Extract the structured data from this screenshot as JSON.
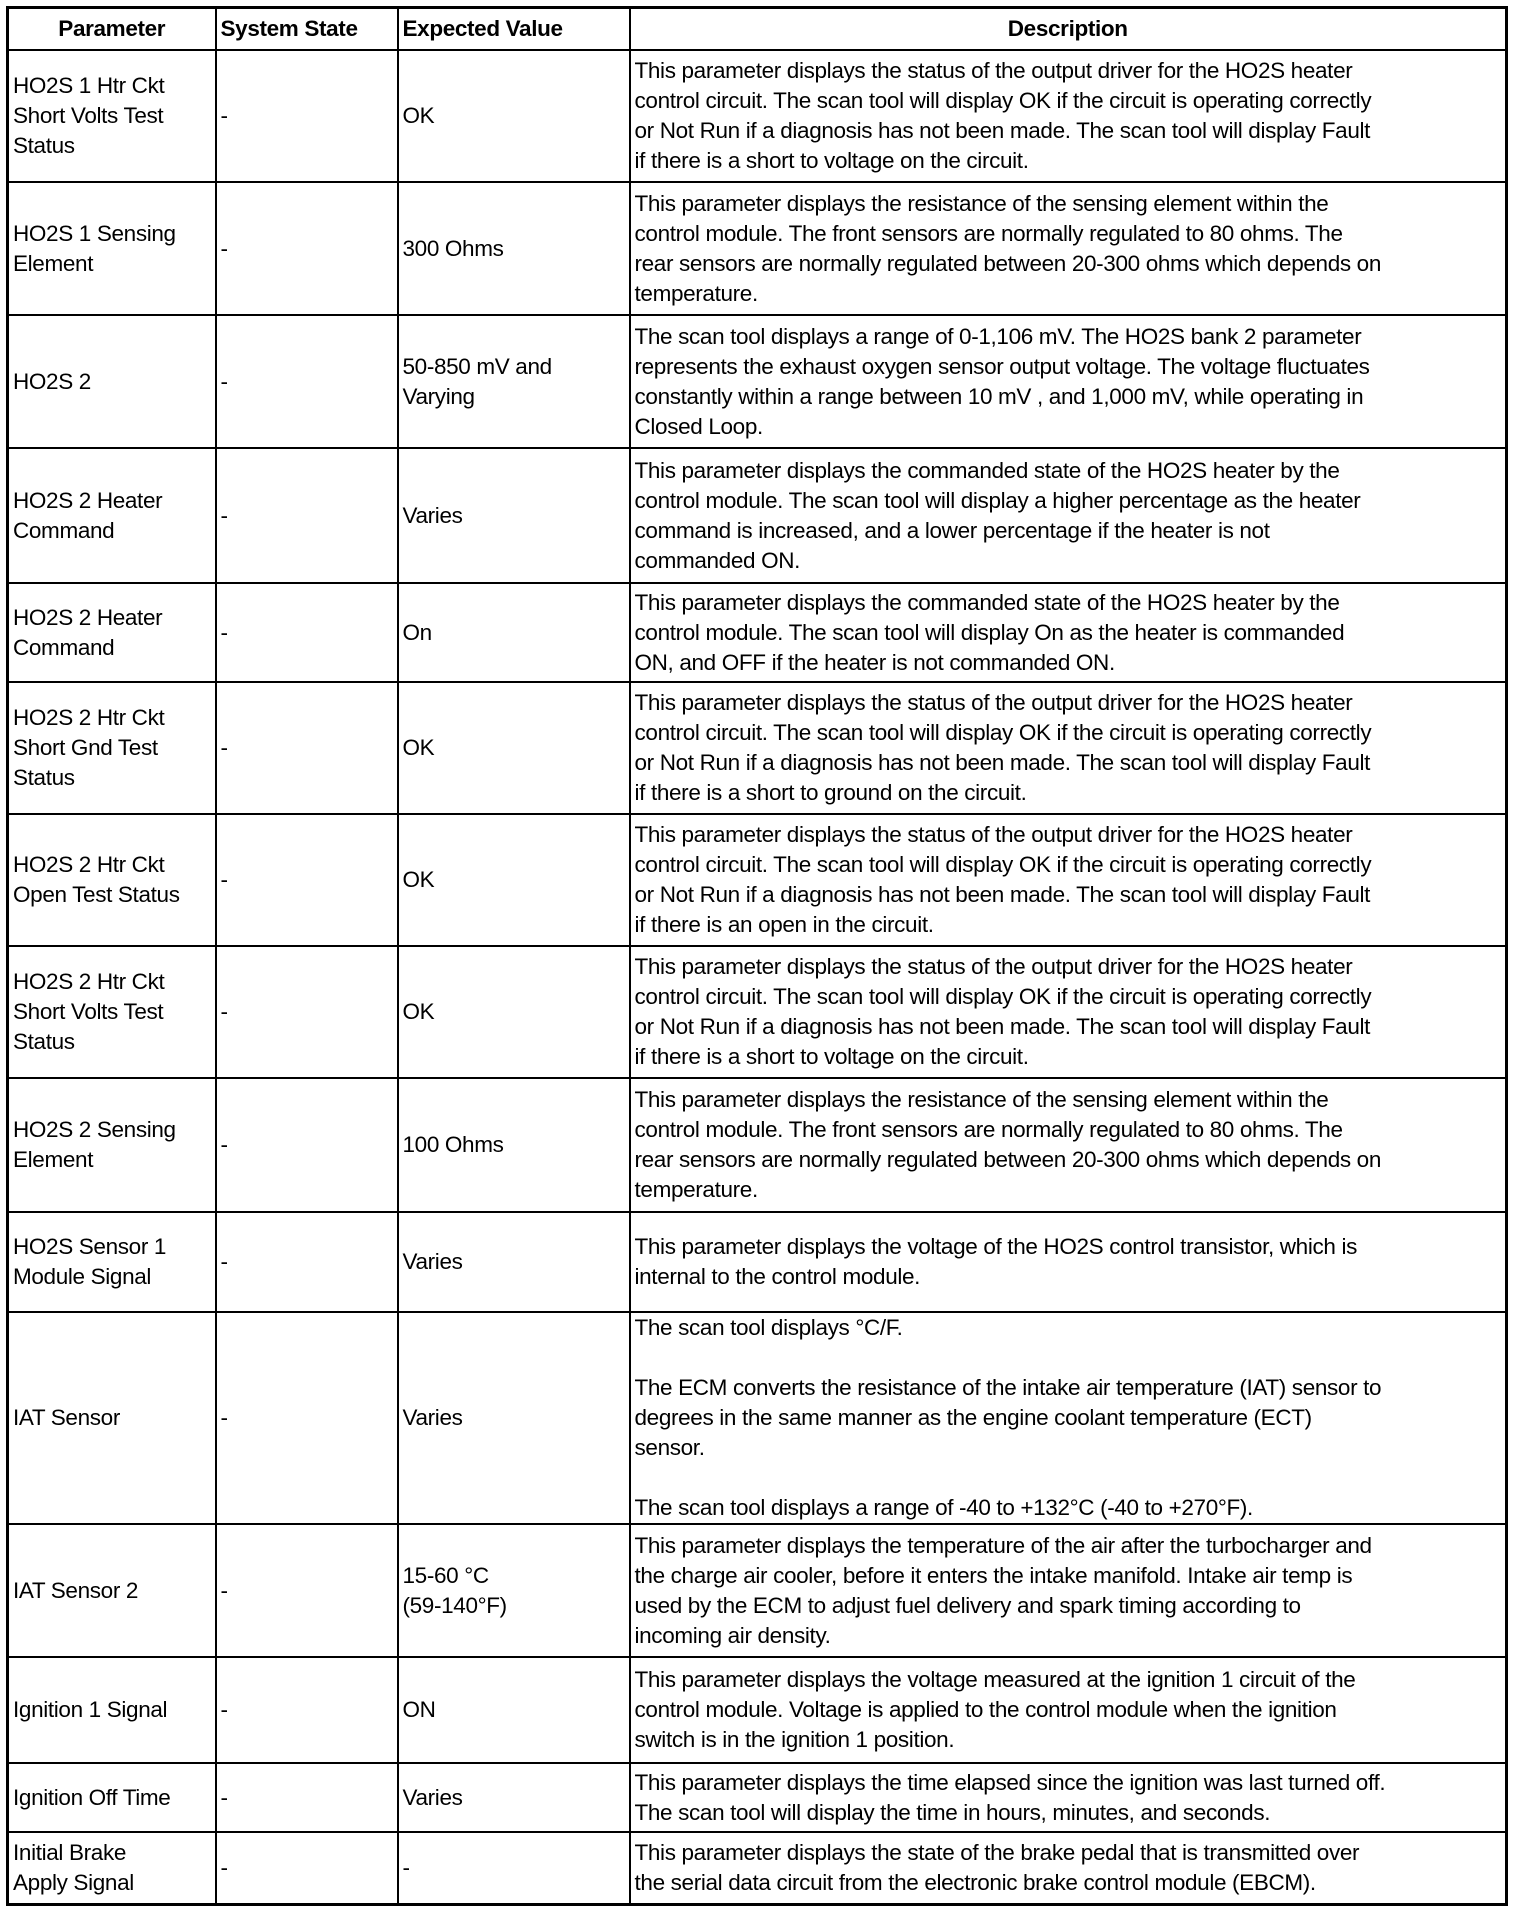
{
  "headers": [
    "Parameter",
    "System State",
    "Expected Value",
    "Description"
  ],
  "rows": [
    {
      "parameter": "HO2S 1 Htr Ckt\nShort Volts Test\nStatus",
      "state": "-",
      "expected": "OK",
      "description": "This parameter displays the status of the output driver for the HO2S heater\ncontrol circuit. The scan tool will display OK if the circuit is operating correctly\nor Not Run if a diagnosis has not been made. The scan tool will display Fault\nif there is a short to voltage on the circuit."
    },
    {
      "parameter": "HO2S 1 Sensing\nElement",
      "state": "-",
      "expected": "300 Ohms",
      "description": "This parameter displays the resistance of the sensing element within the\ncontrol module. The front sensors are normally regulated to 80 ohms. The\nrear sensors are normally regulated between 20-300 ohms which depends on\ntemperature."
    },
    {
      "parameter": "HO2S 2",
      "state": "-",
      "expected": "50-850 mV and\nVarying",
      "description": "The scan tool displays a range of 0-1,106 mV. The HO2S bank 2 parameter\nrepresents the exhaust oxygen sensor output voltage. The voltage fluctuates\nconstantly within a range between 10 mV , and 1,000 mV, while operating in\nClosed Loop."
    },
    {
      "parameter": "HO2S 2 Heater\nCommand",
      "state": "-",
      "expected": "Varies",
      "description": "This parameter displays the commanded state of the HO2S heater by the\ncontrol module. The scan tool will display a higher percentage as the heater\ncommand is increased, and a lower percentage if the heater is not\ncommanded ON."
    },
    {
      "parameter": "HO2S 2 Heater\nCommand",
      "state": "-",
      "expected": "On",
      "description": "This parameter displays the commanded state of the HO2S heater by the\ncontrol module. The scan tool will display On as the heater is commanded\nON, and OFF if the heater is not commanded ON."
    },
    {
      "parameter": "HO2S 2 Htr Ckt\nShort Gnd Test\nStatus",
      "state": "-",
      "expected": "OK",
      "description": "This parameter displays the status of the output driver for the HO2S heater\ncontrol circuit. The scan tool will display OK if the circuit is operating correctly\nor Not Run if a diagnosis has not been made. The scan tool will display Fault\nif there is a short to ground on the circuit."
    },
    {
      "parameter": "HO2S 2 Htr Ckt\nOpen Test Status",
      "state": "-",
      "expected": "OK",
      "description": "This parameter displays the status of the output driver for the HO2S heater\ncontrol circuit. The scan tool will display OK if the circuit is operating correctly\nor Not Run if a diagnosis has not been made. The scan tool will display Fault\nif there is an open in the circuit."
    },
    {
      "parameter": "HO2S 2 Htr Ckt\nShort Volts Test\nStatus",
      "state": "-",
      "expected": "OK",
      "description": "This parameter displays the status of the output driver for the HO2S heater\ncontrol circuit. The scan tool will display OK if the circuit is operating correctly\nor Not Run if a diagnosis has not been made. The scan tool will display Fault\nif there is a short to voltage on the circuit."
    },
    {
      "parameter": "HO2S 2 Sensing\nElement",
      "state": "-",
      "expected": "100 Ohms",
      "description": "This parameter displays the resistance of the sensing element within the\ncontrol module. The front sensors are normally regulated to 80 ohms. The\nrear sensors are normally regulated between 20-300 ohms which depends on\ntemperature."
    },
    {
      "parameter": "HO2S Sensor 1\nModule Signal",
      "state": "-",
      "expected": "Varies",
      "description": "This parameter displays the voltage of the HO2S control transistor, which is\ninternal to the control module."
    },
    {
      "parameter": "IAT Sensor",
      "state": "-",
      "expected": "Varies",
      "description": "The scan tool displays °C/F.\n\nThe ECM converts the resistance of the intake air temperature (IAT) sensor to\ndegrees in the same manner as the engine coolant temperature (ECT)\nsensor.\n\nThe scan tool displays a range of -40 to +132°C (-40 to +270°F)."
    },
    {
      "parameter": "IAT Sensor 2",
      "state": "-",
      "expected": "15-60 °C\n(59-140°F)",
      "description": "This parameter displays the temperature of the air after the turbocharger and\nthe charge air cooler, before it enters the intake manifold. Intake air temp is\nused by the ECM to adjust fuel delivery and spark timing according to\nincoming air density."
    },
    {
      "parameter": "Ignition 1 Signal",
      "state": "-",
      "expected": "ON",
      "description": "This parameter displays the voltage measured at the ignition 1 circuit of the\ncontrol module. Voltage is applied to the control module when the ignition\nswitch is in the ignition 1 position."
    },
    {
      "parameter": "Ignition Off Time",
      "state": "-",
      "expected": "Varies",
      "description": "This parameter displays the time elapsed since the ignition was last turned off.\nThe scan tool will display the time in hours, minutes, and seconds."
    },
    {
      "parameter": "Initial Brake\nApply Signal",
      "state": "-",
      "expected": "-",
      "description": "This parameter displays the state of the brake pedal that is transmitted over\nthe serial data circuit from the electronic brake control module (EBCM)."
    }
  ]
}
